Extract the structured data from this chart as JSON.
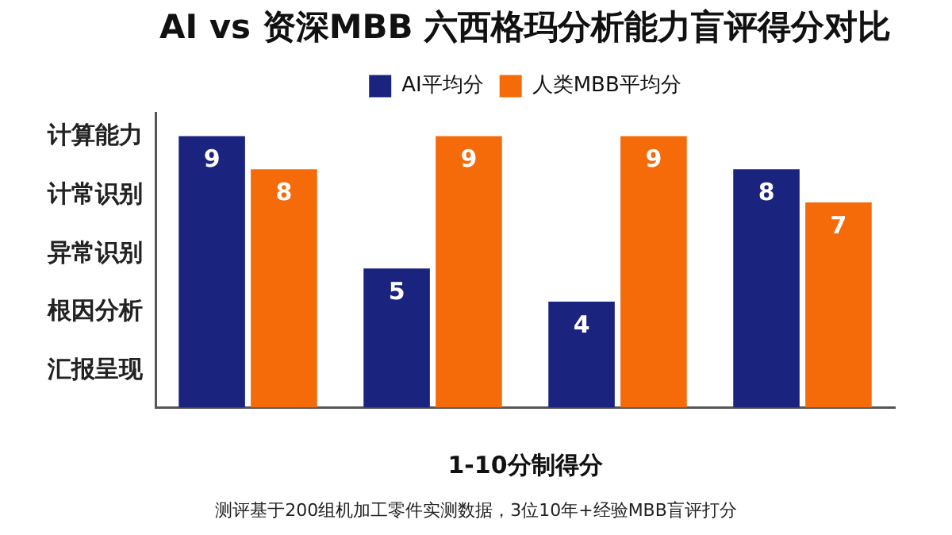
{
  "chart_data": {
    "type": "bar",
    "title": "AI vs 资深MBB 六西格玛分析能力盲评得分对比",
    "xlabel": "1-10分制得分",
    "categories": [
      null,
      null,
      null,
      null
    ],
    "series": [
      {
        "name": "AI平均分",
        "color": "#1a237e",
        "values": [
          9,
          5,
          4,
          8
        ]
      },
      {
        "name": "人类MBB平均分",
        "color": "#f56b0a",
        "values": [
          8,
          9,
          9,
          7
        ]
      }
    ],
    "ylim": [
      0.8,
      9.7
    ],
    "grid": false,
    "legend": "top",
    "data_labels": true,
    "annotations": [
      "计算能力",
      "计常识别",
      "异常识别",
      "根因分析",
      "汇报呈现",
      "测评基于200组机加工零件实测数据，3位10年+经验MBB盲评打分"
    ]
  }
}
